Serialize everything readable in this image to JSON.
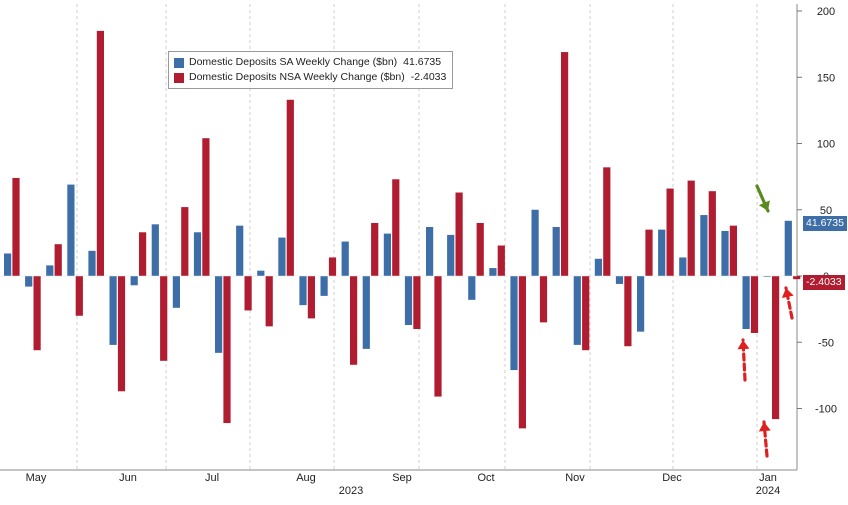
{
  "chart_data": {
    "type": "bar",
    "xaxis": {
      "months": [
        "May",
        "Jun",
        "Jul",
        "Aug",
        "Sep",
        "Oct",
        "Nov",
        "Dec",
        "Jan"
      ],
      "year_labels": [
        "2023",
        "2024"
      ]
    },
    "yaxis": {
      "ticks": [
        200,
        150,
        100,
        50,
        0,
        -50,
        -100
      ],
      "ylim": [
        -140,
        205
      ],
      "side": "right"
    },
    "series": [
      {
        "name": "Domestic Deposits SA Weekly Change ($bn)",
        "legend_value": "41.6735",
        "last_label": "41.6735",
        "color": "#3d6ea8",
        "values": [
          17,
          -8,
          8,
          69,
          19,
          -52,
          -7,
          39,
          -24,
          33,
          -58,
          38,
          4,
          29,
          -22,
          -15,
          26,
          -55,
          32,
          -37,
          37,
          31,
          -18,
          6,
          -71,
          50,
          37,
          -52,
          13,
          -6,
          -42,
          35,
          14,
          46,
          34,
          -40,
          0,
          41.6735
        ]
      },
      {
        "name": "Domestic Deposits NSA Weekly Change ($bn)",
        "legend_value": "-2.4033",
        "last_label": "-2.4033",
        "color": "#b01c30",
        "values": [
          74,
          -56,
          24,
          -30,
          185,
          -87,
          33,
          -64,
          52,
          104,
          -111,
          -26,
          -38,
          133,
          -32,
          14,
          -67,
          40,
          73,
          -40,
          -91,
          63,
          40,
          23,
          -115,
          -35,
          169,
          -56,
          82,
          -53,
          35,
          66,
          72,
          64,
          38,
          -43,
          -108,
          -2.4033
        ]
      }
    ],
    "annotations": [
      {
        "type": "arrow",
        "color": "#5a8a1f",
        "target": "last SA bar"
      },
      {
        "type": "arrow",
        "color": "#e02020",
        "target": "last NSA bar"
      },
      {
        "type": "arrow",
        "color": "#e02020",
        "target": "NSA bar, 2024 week 1"
      },
      {
        "type": "arrow",
        "color": "#e02020",
        "target": "NSA bar, late Dec"
      }
    ],
    "grid": "vertical dashed"
  }
}
